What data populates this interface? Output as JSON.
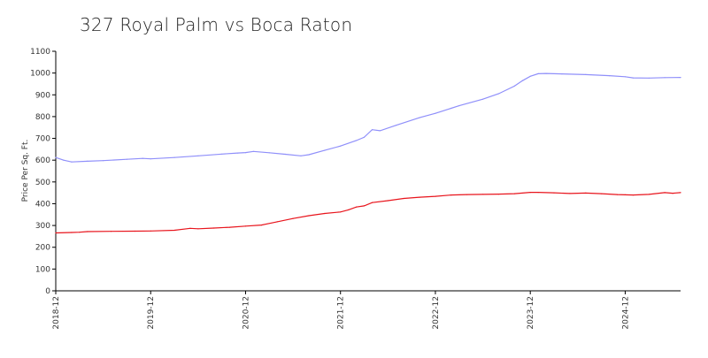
{
  "chart_data": {
    "type": "line",
    "title": "327 Royal Palm vs Boca Raton",
    "ylabel": "Price Per Sq. Ft.",
    "xlabel": "",
    "ylim": [
      0,
      1100
    ],
    "yticks": [
      0,
      100,
      200,
      300,
      400,
      500,
      600,
      700,
      800,
      900,
      1000,
      1100
    ],
    "x_range": [
      "2018-12",
      "2025-07"
    ],
    "xticks": [
      "2018-12",
      "2019-12",
      "2020-12",
      "2021-12",
      "2022-12",
      "2023-12",
      "2024-12"
    ],
    "grid": false,
    "legend": "none",
    "series": [
      {
        "color": "#8f8ffa",
        "points": [
          [
            "2018-12",
            612
          ],
          [
            "2019-01",
            600
          ],
          [
            "2019-02",
            592
          ],
          [
            "2019-04",
            595
          ],
          [
            "2019-06",
            598
          ],
          [
            "2019-09",
            604
          ],
          [
            "2019-11",
            608
          ],
          [
            "2019-12",
            606
          ],
          [
            "2020-03",
            612
          ],
          [
            "2020-06",
            620
          ],
          [
            "2020-09",
            628
          ],
          [
            "2020-11",
            633
          ],
          [
            "2020-12",
            635
          ],
          [
            "2021-01",
            640
          ],
          [
            "2021-03",
            634
          ],
          [
            "2021-05",
            627
          ],
          [
            "2021-07",
            620
          ],
          [
            "2021-08",
            625
          ],
          [
            "2021-10",
            645
          ],
          [
            "2021-12",
            665
          ],
          [
            "2022-02",
            690
          ],
          [
            "2022-03",
            705
          ],
          [
            "2022-04",
            740
          ],
          [
            "2022-05",
            735
          ],
          [
            "2022-07",
            760
          ],
          [
            "2022-10",
            795
          ],
          [
            "2022-12",
            815
          ],
          [
            "2023-03",
            850
          ],
          [
            "2023-06",
            880
          ],
          [
            "2023-08",
            905
          ],
          [
            "2023-10",
            940
          ],
          [
            "2023-11",
            965
          ],
          [
            "2023-12",
            985
          ],
          [
            "2024-01",
            997
          ],
          [
            "2024-02",
            998
          ],
          [
            "2024-04",
            996
          ],
          [
            "2024-07",
            993
          ],
          [
            "2024-10",
            988
          ],
          [
            "2024-12",
            983
          ],
          [
            "2025-01",
            978
          ],
          [
            "2025-03",
            977
          ],
          [
            "2025-05",
            979
          ],
          [
            "2025-07",
            980
          ]
        ]
      },
      {
        "color": "#e8141c",
        "points": [
          [
            "2018-12",
            266
          ],
          [
            "2019-02",
            268
          ],
          [
            "2019-03",
            269
          ],
          [
            "2019-04",
            272
          ],
          [
            "2019-07",
            273
          ],
          [
            "2019-10",
            274
          ],
          [
            "2019-12",
            275
          ],
          [
            "2020-03",
            278
          ],
          [
            "2020-05",
            287
          ],
          [
            "2020-06",
            285
          ],
          [
            "2020-08",
            288
          ],
          [
            "2020-10",
            292
          ],
          [
            "2020-12",
            297
          ],
          [
            "2021-02",
            302
          ],
          [
            "2021-04",
            317
          ],
          [
            "2021-06",
            332
          ],
          [
            "2021-08",
            345
          ],
          [
            "2021-10",
            355
          ],
          [
            "2021-12",
            362
          ],
          [
            "2022-01",
            372
          ],
          [
            "2022-02",
            385
          ],
          [
            "2022-03",
            390
          ],
          [
            "2022-04",
            405
          ],
          [
            "2022-06",
            414
          ],
          [
            "2022-08",
            424
          ],
          [
            "2022-10",
            430
          ],
          [
            "2022-12",
            434
          ],
          [
            "2023-02",
            440
          ],
          [
            "2023-04",
            442
          ],
          [
            "2023-06",
            443
          ],
          [
            "2023-08",
            444
          ],
          [
            "2023-10",
            446
          ],
          [
            "2023-12",
            452
          ],
          [
            "2024-01",
            452
          ],
          [
            "2024-03",
            450
          ],
          [
            "2024-05",
            447
          ],
          [
            "2024-07",
            449
          ],
          [
            "2024-09",
            446
          ],
          [
            "2024-11",
            442
          ],
          [
            "2024-12",
            441
          ],
          [
            "2025-01",
            440
          ],
          [
            "2025-03",
            443
          ],
          [
            "2025-05",
            451
          ],
          [
            "2025-06",
            448
          ],
          [
            "2025-07",
            451
          ]
        ]
      }
    ]
  }
}
